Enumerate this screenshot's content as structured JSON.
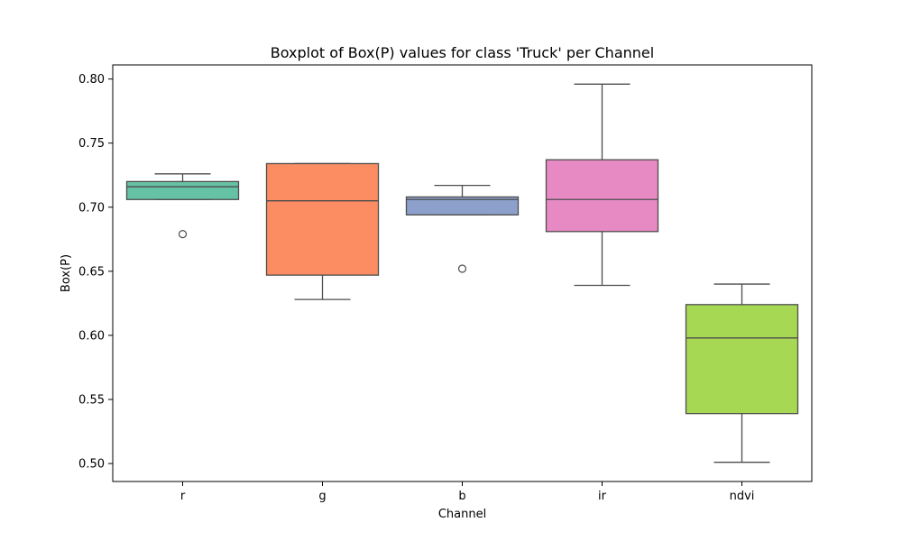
{
  "chart_data": {
    "type": "box",
    "title": "Boxplot of Box(P) values for class 'Truck' per Channel",
    "xlabel": "Channel",
    "ylabel": "Box(P)",
    "ylim": [
      0.486,
      0.811
    ],
    "yticks": [
      0.5,
      0.55,
      0.6,
      0.65,
      0.7,
      0.75,
      0.8
    ],
    "ytick_labels": [
      "0.50",
      "0.55",
      "0.60",
      "0.65",
      "0.70",
      "0.75",
      "0.80"
    ],
    "grid": false,
    "categories": [
      "r",
      "g",
      "b",
      "ir",
      "ndvi"
    ],
    "boxes": [
      {
        "category": "r",
        "color": "#66c2a5",
        "whisker_low": 0.706,
        "q1": 0.706,
        "median": 0.716,
        "q3": 0.72,
        "whisker_high": 0.726,
        "outliers": [
          0.679
        ]
      },
      {
        "category": "g",
        "color": "#fc8d62",
        "whisker_low": 0.628,
        "q1": 0.647,
        "median": 0.705,
        "q3": 0.734,
        "whisker_high": 0.734,
        "outliers": []
      },
      {
        "category": "b",
        "color": "#8da0cb",
        "whisker_low": 0.694,
        "q1": 0.694,
        "median": 0.706,
        "q3": 0.708,
        "whisker_high": 0.717,
        "outliers": [
          0.652
        ]
      },
      {
        "category": "ir",
        "color": "#e78ac3",
        "whisker_low": 0.639,
        "q1": 0.681,
        "median": 0.706,
        "q3": 0.737,
        "whisker_high": 0.796,
        "outliers": []
      },
      {
        "category": "ndvi",
        "color": "#a6d854",
        "whisker_low": 0.501,
        "q1": 0.539,
        "median": 0.598,
        "q3": 0.624,
        "whisker_high": 0.64,
        "outliers": []
      }
    ]
  }
}
